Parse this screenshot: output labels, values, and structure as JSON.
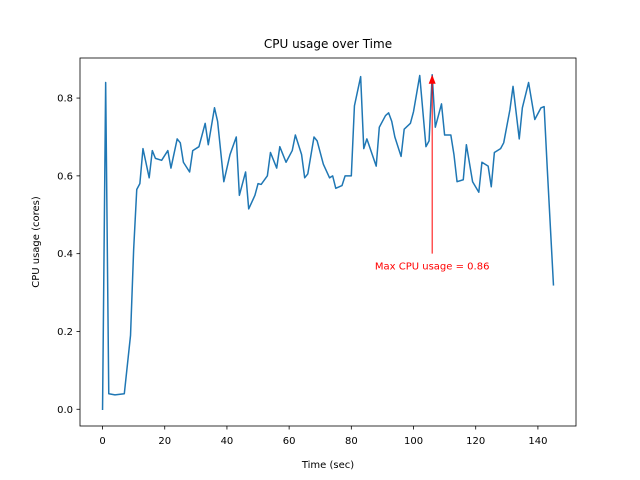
{
  "chart_data": {
    "type": "line",
    "title": "CPU usage over Time",
    "x_label": "Time (sec)",
    "y_label": "CPU usage (cores)",
    "series": [
      {
        "name": "CPU usage",
        "color": "#1f77b4",
        "x": [
          0,
          1,
          2,
          4,
          7,
          9,
          10,
          11,
          12,
          13,
          15,
          16,
          17,
          19,
          21,
          22,
          24,
          25,
          26,
          28,
          29,
          31,
          33,
          34,
          36,
          37,
          39,
          41,
          43,
          44,
          46,
          47,
          49,
          50,
          51,
          53,
          54,
          56,
          57,
          59,
          61,
          62,
          64,
          65,
          66,
          68,
          69,
          71,
          73,
          74,
          75,
          77,
          78,
          80,
          81,
          83,
          84,
          85,
          88,
          89,
          91,
          92,
          93,
          94,
          96,
          97,
          99,
          100,
          102,
          104,
          105,
          106,
          107,
          109,
          110,
          112,
          113,
          114,
          116,
          117,
          119,
          121,
          122,
          124,
          125,
          126,
          128,
          129,
          131,
          132,
          134,
          135,
          137,
          139,
          141,
          142,
          143,
          145
        ],
        "values": [
          0.0,
          0.84,
          0.04,
          0.037,
          0.04,
          0.19,
          0.41,
          0.565,
          0.58,
          0.67,
          0.595,
          0.665,
          0.645,
          0.64,
          0.665,
          0.62,
          0.695,
          0.685,
          0.635,
          0.61,
          0.665,
          0.675,
          0.735,
          0.68,
          0.775,
          0.74,
          0.585,
          0.655,
          0.7,
          0.55,
          0.61,
          0.515,
          0.55,
          0.58,
          0.578,
          0.6,
          0.66,
          0.62,
          0.675,
          0.635,
          0.665,
          0.705,
          0.655,
          0.595,
          0.605,
          0.7,
          0.69,
          0.63,
          0.595,
          0.6,
          0.568,
          0.575,
          0.6,
          0.6,
          0.78,
          0.855,
          0.67,
          0.695,
          0.625,
          0.725,
          0.755,
          0.762,
          0.74,
          0.7,
          0.65,
          0.72,
          0.735,
          0.765,
          0.858,
          0.675,
          0.69,
          0.86,
          0.725,
          0.785,
          0.705,
          0.705,
          0.655,
          0.585,
          0.59,
          0.68,
          0.585,
          0.558,
          0.635,
          0.625,
          0.572,
          0.66,
          0.67,
          0.685,
          0.77,
          0.83,
          0.695,
          0.775,
          0.84,
          0.745,
          0.775,
          0.778,
          0.62,
          0.32
        ]
      }
    ],
    "xlim": [
      -7.25,
      152.25
    ],
    "ylim": [
      -0.043,
      0.903
    ],
    "xticks": [
      0,
      20,
      40,
      60,
      80,
      100,
      120,
      140
    ],
    "yticks": [
      {
        "value": 0,
        "label": "0.0"
      },
      0.2,
      0.4,
      0.6,
      0.8
    ],
    "grid": false,
    "annotations": [
      {
        "text": "Max CPU usage = 0.86",
        "color": "#ff0000",
        "xy": [
          106,
          0.86
        ],
        "xytext": [
          106,
          0.4
        ]
      }
    ]
  }
}
